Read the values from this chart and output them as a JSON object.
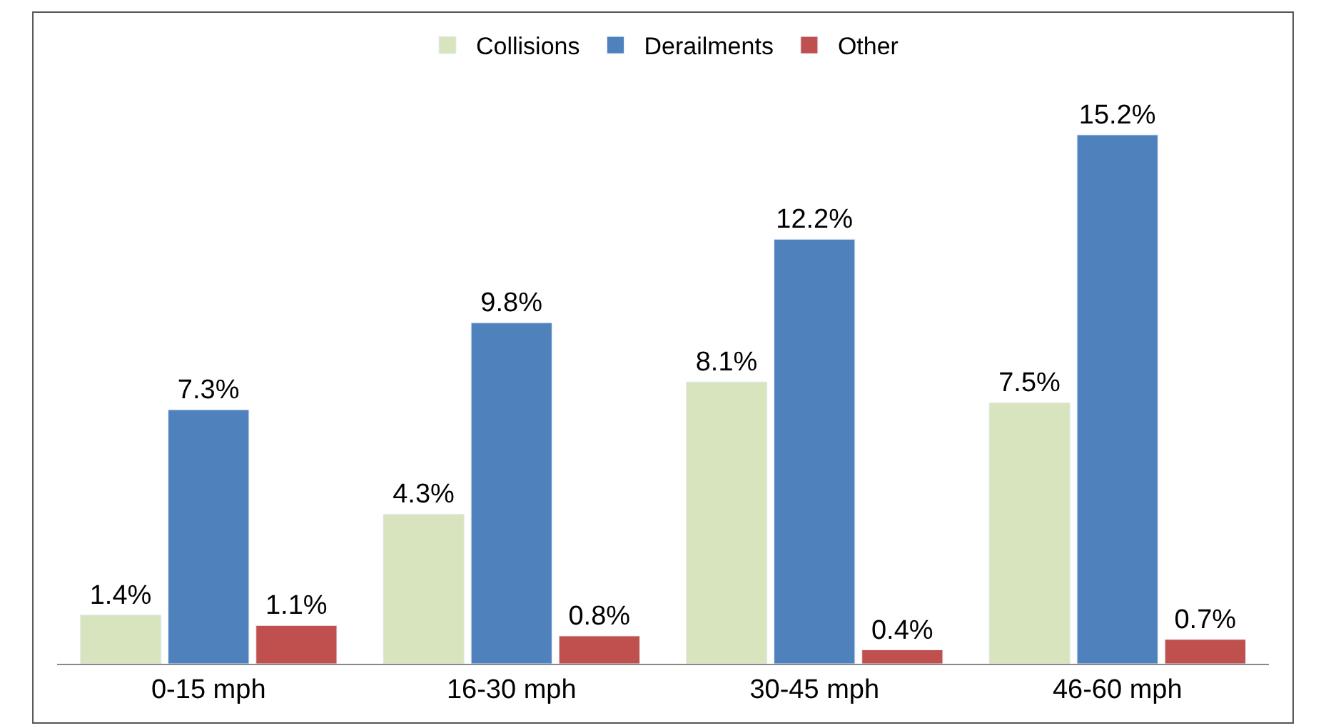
{
  "chart_data": {
    "type": "bar",
    "categories": [
      "0-15 mph",
      "16-30 mph",
      "30-45 mph",
      "46-60 mph"
    ],
    "series": [
      {
        "name": "Collisions",
        "color": "#d7e4bd",
        "values": [
          1.4,
          4.3,
          8.1,
          7.5
        ],
        "value_labels": [
          "1.4%",
          "4.3%",
          "8.1%",
          "7.5%"
        ]
      },
      {
        "name": "Derailments",
        "color": "#4f81bd",
        "values": [
          7.3,
          9.8,
          12.2,
          15.2
        ],
        "value_labels": [
          "7.3%",
          "9.8%",
          "12.2%",
          "15.2%"
        ]
      },
      {
        "name": "Other",
        "color": "#c0504d",
        "values": [
          1.1,
          0.8,
          0.4,
          0.7
        ],
        "value_labels": [
          "1.1%",
          "0.8%",
          "0.4%",
          "0.7%"
        ]
      }
    ],
    "legend": "top"
  }
}
